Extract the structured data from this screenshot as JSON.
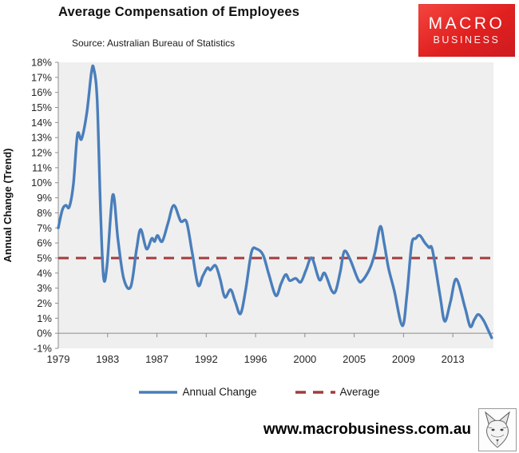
{
  "header": {
    "title": "Average Compensation of Employees",
    "subtitle": "Source: Australian Bureau of Statistics"
  },
  "logo": {
    "line1": "MACRO",
    "line2": "BUSINESS"
  },
  "colors": {
    "annual_change": "#4A7EBB",
    "average": "#A33C3C",
    "plot_bg": "#EFEFEF",
    "axis": "#8C8C8C",
    "tick_text": "#262626"
  },
  "chart_data": {
    "type": "line",
    "title": "Average Compensation of Employees",
    "source": "Source: Australian Bureau of Statistics",
    "xlabel": "",
    "ylabel": "Annual Change (Trend)",
    "ylim": [
      -1,
      18
    ],
    "x_range": [
      1979.25,
      2016.75
    ],
    "grid": false,
    "legend_position": "bottom",
    "y_ticks": [
      {
        "value": 18,
        "label": "18%"
      },
      {
        "value": 17,
        "label": "17%"
      },
      {
        "value": 16,
        "label": "16%"
      },
      {
        "value": 15,
        "label": "15%"
      },
      {
        "value": 14,
        "label": "14%"
      },
      {
        "value": 13,
        "label": "13%"
      },
      {
        "value": 12,
        "label": "12%"
      },
      {
        "value": 11,
        "label": "11%"
      },
      {
        "value": 10,
        "label": "10%"
      },
      {
        "value": 9,
        "label": "9%"
      },
      {
        "value": 8,
        "label": "8%"
      },
      {
        "value": 7,
        "label": "7%"
      },
      {
        "value": 6,
        "label": "6%"
      },
      {
        "value": 5,
        "label": "5%"
      },
      {
        "value": 4,
        "label": "4%"
      },
      {
        "value": 3,
        "label": "3%"
      },
      {
        "value": 2,
        "label": "2%"
      },
      {
        "value": 1,
        "label": "1%"
      },
      {
        "value": 0,
        "label": "0%"
      },
      {
        "value": -1,
        "label": "-1%"
      }
    ],
    "x_ticks": [
      {
        "year": 1979.25,
        "label": "1979"
      },
      {
        "year": 1983.5,
        "label": "1983"
      },
      {
        "year": 1987.75,
        "label": "1987"
      },
      {
        "year": 1992.0,
        "label": "1992"
      },
      {
        "year": 1996.25,
        "label": "1996"
      },
      {
        "year": 2000.5,
        "label": "2000"
      },
      {
        "year": 2004.75,
        "label": "2005"
      },
      {
        "year": 2009.0,
        "label": "2009"
      },
      {
        "year": 2013.25,
        "label": "2013"
      }
    ],
    "series": [
      {
        "name": "Annual Change",
        "type": "smooth-line",
        "points": [
          [
            1979.25,
            7.0
          ],
          [
            1979.6,
            8.2
          ],
          [
            1979.9,
            8.5
          ],
          [
            1980.2,
            8.4
          ],
          [
            1980.55,
            9.9
          ],
          [
            1980.9,
            13.2
          ],
          [
            1981.25,
            12.9
          ],
          [
            1981.7,
            14.6
          ],
          [
            1982.1,
            17.3
          ],
          [
            1982.3,
            17.6
          ],
          [
            1982.6,
            15.5
          ],
          [
            1982.9,
            8.0
          ],
          [
            1983.15,
            3.7
          ],
          [
            1983.45,
            4.5
          ],
          [
            1983.95,
            9.2
          ],
          [
            1984.4,
            6.2
          ],
          [
            1984.9,
            3.6
          ],
          [
            1985.5,
            3.1
          ],
          [
            1986.0,
            5.6
          ],
          [
            1986.35,
            6.9
          ],
          [
            1986.85,
            5.6
          ],
          [
            1987.3,
            6.3
          ],
          [
            1987.55,
            6.1
          ],
          [
            1987.8,
            6.5
          ],
          [
            1988.2,
            6.1
          ],
          [
            1988.7,
            7.3
          ],
          [
            1989.2,
            8.5
          ],
          [
            1989.8,
            7.45
          ],
          [
            1990.3,
            7.4
          ],
          [
            1990.8,
            5.3
          ],
          [
            1991.3,
            3.2
          ],
          [
            1991.7,
            3.8
          ],
          [
            1992.1,
            4.35
          ],
          [
            1992.35,
            4.2
          ],
          [
            1992.8,
            4.5
          ],
          [
            1993.2,
            3.6
          ],
          [
            1993.6,
            2.4
          ],
          [
            1994.1,
            2.9
          ],
          [
            1994.5,
            2.1
          ],
          [
            1994.95,
            1.3
          ],
          [
            1995.4,
            2.9
          ],
          [
            1995.9,
            5.4
          ],
          [
            1996.35,
            5.6
          ],
          [
            1996.9,
            5.2
          ],
          [
            1997.4,
            3.9
          ],
          [
            1998.0,
            2.5
          ],
          [
            1998.45,
            3.3
          ],
          [
            1998.85,
            3.9
          ],
          [
            1999.2,
            3.5
          ],
          [
            1999.7,
            3.65
          ],
          [
            2000.15,
            3.4
          ],
          [
            2000.6,
            4.2
          ],
          [
            2001.1,
            5.0
          ],
          [
            2001.75,
            3.55
          ],
          [
            2002.2,
            4.0
          ],
          [
            2002.8,
            2.85
          ],
          [
            2003.15,
            2.8
          ],
          [
            2003.55,
            4.1
          ],
          [
            2003.9,
            5.45
          ],
          [
            2004.4,
            4.9
          ],
          [
            2005.1,
            3.55
          ],
          [
            2005.45,
            3.5
          ],
          [
            2006.1,
            4.3
          ],
          [
            2006.55,
            5.4
          ],
          [
            2007.0,
            7.1
          ],
          [
            2007.35,
            5.9
          ],
          [
            2007.7,
            4.35
          ],
          [
            2008.2,
            2.85
          ],
          [
            2008.9,
            0.5
          ],
          [
            2009.3,
            2.6
          ],
          [
            2009.7,
            5.9
          ],
          [
            2010.05,
            6.3
          ],
          [
            2010.4,
            6.5
          ],
          [
            2010.85,
            6.0
          ],
          [
            2011.2,
            5.7
          ],
          [
            2011.5,
            5.5
          ],
          [
            2012.15,
            2.5
          ],
          [
            2012.55,
            0.8
          ],
          [
            2013.05,
            2.1
          ],
          [
            2013.55,
            3.6
          ],
          [
            2014.3,
            1.7
          ],
          [
            2014.75,
            0.45
          ],
          [
            2015.1,
            0.9
          ],
          [
            2015.45,
            1.25
          ],
          [
            2015.9,
            0.85
          ],
          [
            2016.3,
            0.2
          ],
          [
            2016.6,
            -0.3
          ]
        ]
      },
      {
        "name": "Average",
        "type": "dashed-horizontal",
        "value": 5
      }
    ]
  },
  "footer": {
    "website": "www.macrobusiness.com.au"
  }
}
